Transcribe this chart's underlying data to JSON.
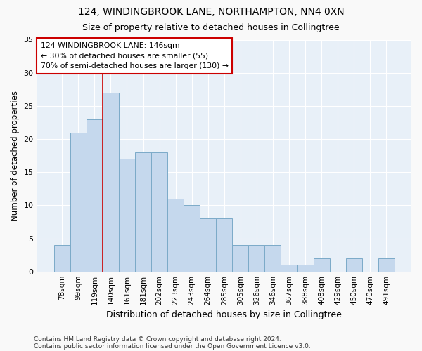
{
  "title1": "124, WINDINGBROOK LANE, NORTHAMPTON, NN4 0XN",
  "title2": "Size of property relative to detached houses in Collingtree",
  "xlabel": "Distribution of detached houses by size in Collingtree",
  "ylabel": "Number of detached properties",
  "footnote1": "Contains HM Land Registry data © Crown copyright and database right 2024.",
  "footnote2": "Contains public sector information licensed under the Open Government Licence v3.0.",
  "categories": [
    "78sqm",
    "99sqm",
    "119sqm",
    "140sqm",
    "161sqm",
    "181sqm",
    "202sqm",
    "223sqm",
    "243sqm",
    "264sqm",
    "285sqm",
    "305sqm",
    "326sqm",
    "346sqm",
    "367sqm",
    "388sqm",
    "408sqm",
    "429sqm",
    "450sqm",
    "470sqm",
    "491sqm"
  ],
  "values": [
    4,
    21,
    23,
    27,
    17,
    18,
    18,
    11,
    10,
    8,
    8,
    4,
    4,
    4,
    1,
    1,
    2,
    0,
    2,
    0,
    2
  ],
  "bar_color": "#c5d8ed",
  "bar_edge_color": "#7baac8",
  "bg_color": "#e8f0f8",
  "grid_color": "#ffffff",
  "vline_color": "#cc0000",
  "vline_x_index": 3,
  "annotation_text": "124 WINDINGBROOK LANE: 146sqm\n← 30% of detached houses are smaller (55)\n70% of semi-detached houses are larger (130) →",
  "annotation_box_color": "#ffffff",
  "annotation_box_edge": "#cc0000",
  "ylim": [
    0,
    35
  ],
  "yticks": [
    0,
    5,
    10,
    15,
    20,
    25,
    30,
    35
  ],
  "fig_width": 6.0,
  "fig_height": 5.0,
  "bg_figure": "#f9f9f9"
}
